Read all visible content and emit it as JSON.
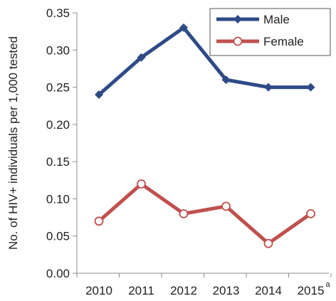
{
  "chart_data": {
    "type": "line",
    "categories": [
      "2010",
      "2011",
      "2012",
      "2013",
      "2014",
      "2015"
    ],
    "category_note": {
      "index": 5,
      "mark": "a"
    },
    "ylabel": "No. of HIV+ individuals per 1,000 tested",
    "ylim": [
      0,
      0.35
    ],
    "yticks": [
      "0.00",
      "0.05",
      "0.10",
      "0.15",
      "0.20",
      "0.25",
      "0.30",
      "0.35"
    ],
    "legend_position": "top-right",
    "series": [
      {
        "name": "Male",
        "values": [
          0.24,
          0.29,
          0.33,
          0.26,
          0.25,
          0.25
        ],
        "color": "#2E4A87",
        "marker": "diamond-filled"
      },
      {
        "name": "Female",
        "values": [
          0.07,
          0.12,
          0.08,
          0.09,
          0.04,
          0.08
        ],
        "color": "#C0504D",
        "marker": "circle-open"
      }
    ]
  }
}
